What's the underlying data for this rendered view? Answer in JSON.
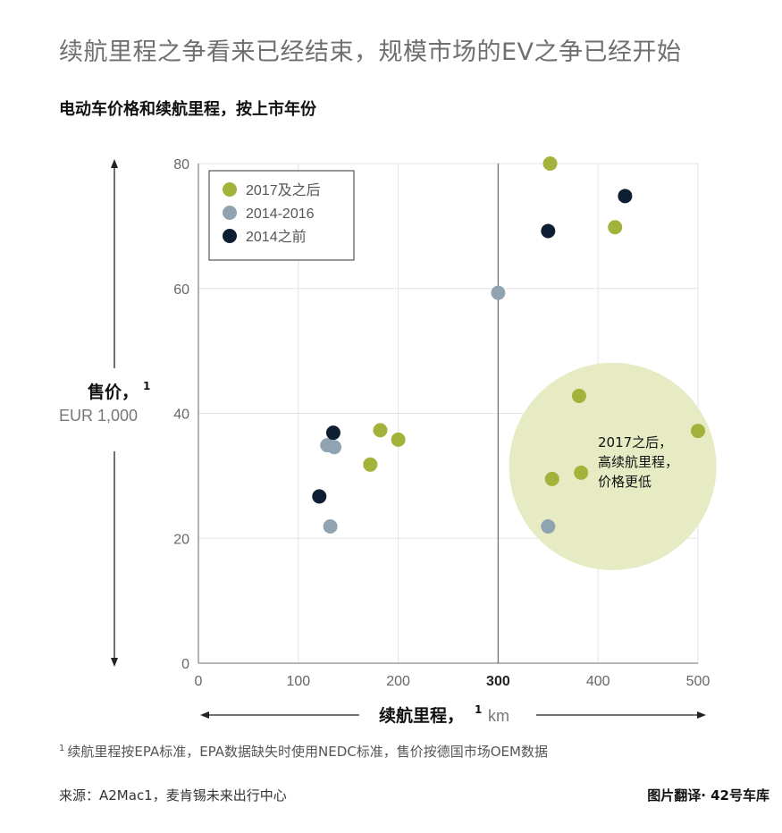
{
  "headline": "续航里程之争看来已经结束，规模市场的EV之争已经开始",
  "chart_data": {
    "type": "scatter",
    "title": "电动车价格和续航里程，按上市年份",
    "xlabel": "续航里程，",
    "xlabel_sup": "1",
    "xunit": "km",
    "ylabel": "售价，",
    "ylabel_sup": "1",
    "yunit": "EUR 1,000",
    "xlim": [
      0,
      500
    ],
    "ylim": [
      0,
      80
    ],
    "xticks": [
      0,
      100,
      200,
      300,
      400,
      500
    ],
    "yticks": [
      0,
      20,
      40,
      60,
      80
    ],
    "grid": true,
    "legend_position": "top-left",
    "series": [
      {
        "name": "2017及之后",
        "color": "#a3b23a",
        "points": [
          [
            352,
            80
          ],
          [
            417,
            69.8
          ],
          [
            381,
            42.8
          ],
          [
            500,
            37.2
          ],
          [
            182,
            37.3
          ],
          [
            200,
            35.8
          ],
          [
            172,
            31.8
          ],
          [
            383,
            30.5
          ],
          [
            354,
            29.5
          ]
        ]
      },
      {
        "name": "2014-2016",
        "color": "#8fa4b0",
        "points": [
          [
            300,
            59.3
          ],
          [
            129,
            34.9
          ],
          [
            136,
            34.6
          ],
          [
            132,
            21.9
          ],
          [
            350,
            21.9
          ]
        ]
      },
      {
        "name": "2014之前",
        "color": "#0f1f33",
        "points": [
          [
            427,
            74.8
          ],
          [
            350,
            69.2
          ],
          [
            135,
            36.9
          ],
          [
            121,
            26.7
          ]
        ]
      }
    ],
    "annotation": {
      "lines": [
        "2017之后，",
        "高续航里程，",
        "价格更低"
      ],
      "center": [
        420,
        31.5
      ],
      "color": "#e6ebc4"
    },
    "reference_line_x": 300
  },
  "footnote": {
    "marker": "1",
    "text": "续航里程按EPA标准，EPA数据缺失时使用NEDC标准，售价按德国市场OEM数据"
  },
  "source": "来源：A2Mac1，麦肯锡未来出行中心",
  "credit": "图片翻译· 42号车库"
}
